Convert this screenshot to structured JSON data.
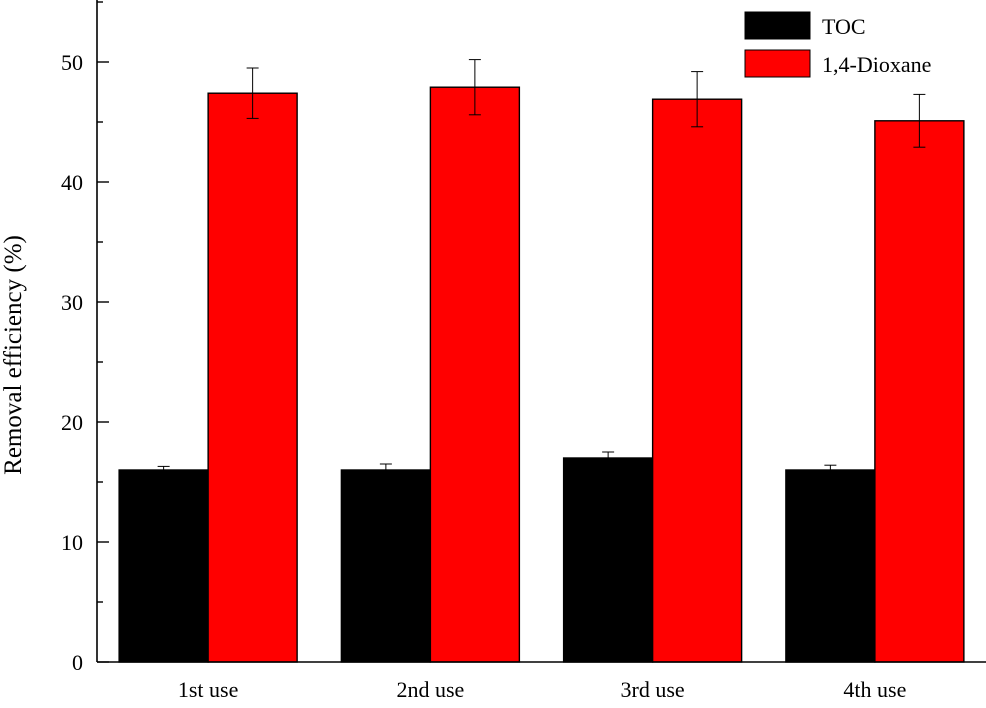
{
  "chart_data": {
    "type": "bar",
    "title": "",
    "xlabel": "",
    "ylabel": "Removal efficiency (%)",
    "ylim": [
      0,
      55
    ],
    "yticks": [
      0,
      10,
      20,
      30,
      40,
      50
    ],
    "grid": false,
    "legend_position": "top-right",
    "categories": [
      "1st use",
      "2nd use",
      "3rd use",
      "4th use"
    ],
    "series": [
      {
        "name": "TOC",
        "color": "#000000",
        "values": [
          16.0,
          16.0,
          17.0,
          16.0
        ],
        "errors": [
          0.3,
          0.5,
          0.5,
          0.4
        ]
      },
      {
        "name": "1,4-Dioxane",
        "color": "#ff0000",
        "values": [
          47.4,
          47.9,
          46.9,
          45.1
        ],
        "errors": [
          2.1,
          2.3,
          2.3,
          2.2
        ]
      }
    ]
  }
}
